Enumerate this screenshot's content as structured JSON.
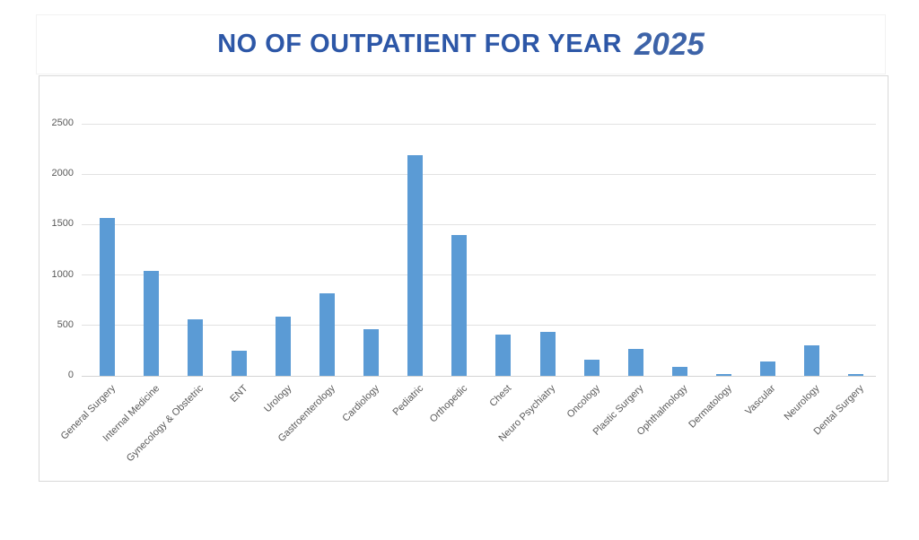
{
  "title": {
    "main": "NO OF OUTPATIENT FOR YEAR",
    "year": "2025"
  },
  "colors": {
    "bar": "#5b9bd5",
    "title_main": "#2d57a7",
    "title_year": "#3d63a8",
    "gridline": "#e2e2e2",
    "axis_line": "#d4d4d4",
    "tick_text": "#595959",
    "panel_border": "#d9d9d9"
  },
  "chart_data": {
    "type": "bar",
    "title": "NO OF OUTPATIENT FOR YEAR 2025",
    "categories": [
      "General Surgery",
      "Internal Medicine",
      "Gynecology & Obstetric",
      "ENT",
      "Urology",
      "Gastroenterology",
      "Cardiology",
      "Pediatric",
      "Orthopedic",
      "Chest",
      "Neuro Psychiatry",
      "Oncology",
      "Plastic Surgery",
      "Ophthalmology",
      "Dermatology",
      "Vascular",
      "Neurology",
      "Dental Surgery"
    ],
    "values": [
      1570,
      1040,
      560,
      250,
      590,
      820,
      460,
      2190,
      1400,
      405,
      440,
      160,
      270,
      85,
      20,
      145,
      300,
      20
    ],
    "xlabel": "",
    "ylabel": "",
    "ylim": [
      0,
      2500
    ],
    "yticks": [
      0,
      500,
      1000,
      1500,
      2000,
      2500
    ],
    "grid": true,
    "legend": false,
    "x_label_rotation_deg": 45
  }
}
